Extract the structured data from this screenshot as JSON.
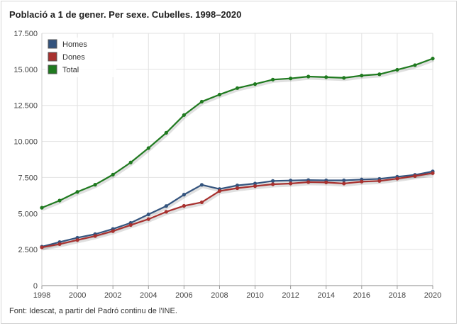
{
  "title": "Població a 1 de gener. Per sexe. Cubelles. 1998–2020",
  "source": "Font: Idescat, a partir del Padró continu de l'INE.",
  "colors": {
    "Homes": "#34547e",
    "Dones": "#a8312f",
    "Total": "#1f7a1f",
    "grid": "#e2e2e2"
  },
  "chart_data": {
    "type": "line",
    "title": "Població a 1 de gener. Per sexe. Cubelles. 1998–2020",
    "x": [
      1998,
      1999,
      2000,
      2001,
      2002,
      2003,
      2004,
      2005,
      2006,
      2007,
      2008,
      2009,
      2010,
      2011,
      2012,
      2013,
      2014,
      2015,
      2016,
      2017,
      2018,
      2019,
      2020
    ],
    "x_tick_labels": [
      "1998",
      "2000",
      "2002",
      "2004",
      "2006",
      "2008",
      "2010",
      "2012",
      "2014",
      "2016",
      "2018",
      "2020"
    ],
    "y_tick_labels": [
      "0",
      "2.500",
      "5.000",
      "7.500",
      "10.000",
      "12.500",
      "15.000",
      "17.500"
    ],
    "ylim": [
      0,
      17500
    ],
    "grid": true,
    "legend_position": "top-left",
    "series": [
      {
        "name": "Homes",
        "values": [
          2700,
          3020,
          3320,
          3570,
          3930,
          4350,
          4940,
          5520,
          6310,
          6990,
          6700,
          6950,
          7080,
          7260,
          7290,
          7320,
          7300,
          7300,
          7360,
          7400,
          7550,
          7680,
          7920
        ]
      },
      {
        "name": "Dones",
        "values": [
          2650,
          2880,
          3160,
          3440,
          3780,
          4200,
          4610,
          5120,
          5530,
          5780,
          6560,
          6760,
          6900,
          7030,
          7080,
          7180,
          7160,
          7080,
          7210,
          7260,
          7420,
          7600,
          7800
        ]
      },
      {
        "name": "Total",
        "values": [
          5400,
          5900,
          6500,
          7000,
          7700,
          8540,
          9540,
          10600,
          11830,
          12760,
          13250,
          13700,
          13980,
          14290,
          14370,
          14500,
          14460,
          14410,
          14570,
          14660,
          14970,
          15290,
          15750
        ]
      }
    ]
  }
}
